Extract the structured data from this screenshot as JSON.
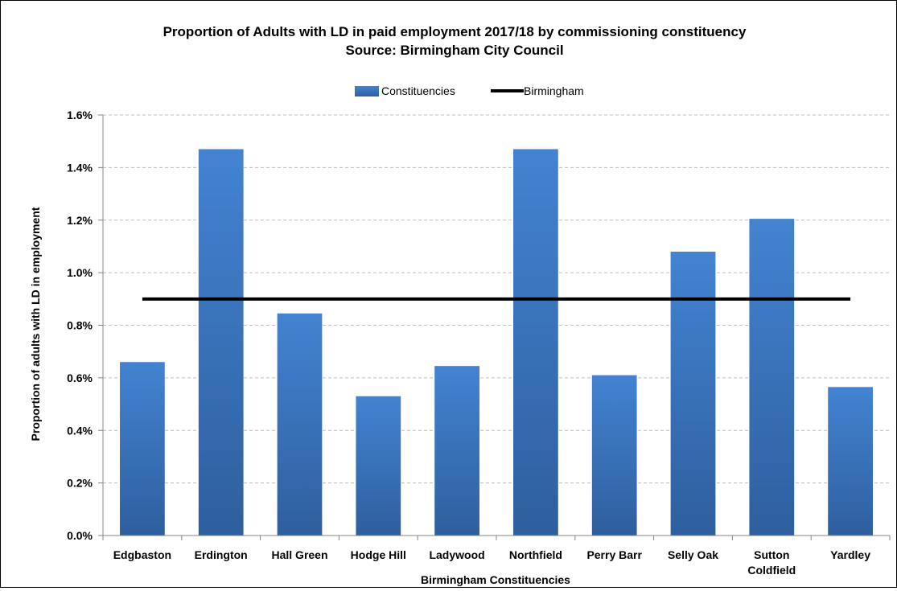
{
  "chart_data": {
    "type": "bar",
    "title": "Proportion of Adults with LD in paid employment 2017/18 by commissioning constituency",
    "subtitle": "Source: Birmingham City Council",
    "xlabel": "Birmingham Constituencies",
    "ylabel": "Proportion of adults with LD in employment",
    "categories": [
      "Edgbaston",
      "Erdington",
      "Hall Green",
      "Hodge Hill",
      "Ladywood",
      "Northfield",
      "Perry Barr",
      "Selly Oak",
      "Sutton Coldfield",
      "Yardley"
    ],
    "series": [
      {
        "name": "Constituencies",
        "type": "bar",
        "values": [
          0.66,
          1.47,
          0.845,
          0.53,
          0.645,
          1.47,
          0.61,
          1.08,
          1.205,
          0.565
        ]
      },
      {
        "name": "Birmingham",
        "type": "line",
        "values": [
          0.9,
          0.9,
          0.9,
          0.9,
          0.9,
          0.9,
          0.9,
          0.9,
          0.9,
          0.9
        ]
      }
    ],
    "ylim": [
      0,
      1.6
    ],
    "yticks": [
      0.0,
      0.2,
      0.4,
      0.6,
      0.8,
      1.0,
      1.2,
      1.4,
      1.6
    ],
    "ytick_format": "percent-1dp",
    "grid": true,
    "legend_position": "top",
    "colors": {
      "bar_top": "#4383D1",
      "bar_bottom": "#2E5F9E",
      "line": "#000000",
      "grid": "#bfbfbf"
    }
  }
}
